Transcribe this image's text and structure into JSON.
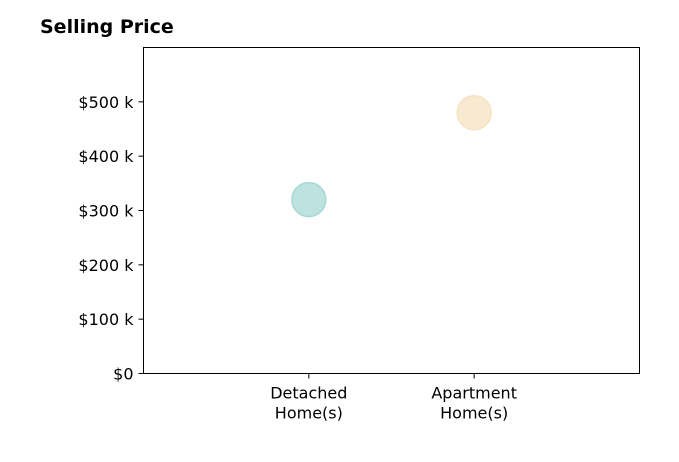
{
  "chart_data": {
    "type": "scatter",
    "title": "Selling Price",
    "xlabel": "",
    "ylabel": "",
    "categories": [
      [
        "Detached",
        "Home(s)"
      ],
      [
        "Apartment",
        "Home(s)"
      ]
    ],
    "points": [
      {
        "category": 0,
        "value": 320000,
        "color": "#a8d8d4"
      },
      {
        "category": 1,
        "value": 480000,
        "color": "#f6e3c2"
      }
    ],
    "ylim": [
      0,
      600000
    ],
    "yticks": [
      0,
      100000,
      200000,
      300000,
      400000,
      500000
    ],
    "ytick_labels": [
      "$0",
      "$100 k",
      "$200 k",
      "$300 k",
      "$400 k",
      "$500 k"
    ],
    "xlim": [
      -1,
      2
    ],
    "grid": false,
    "legend": "none"
  }
}
